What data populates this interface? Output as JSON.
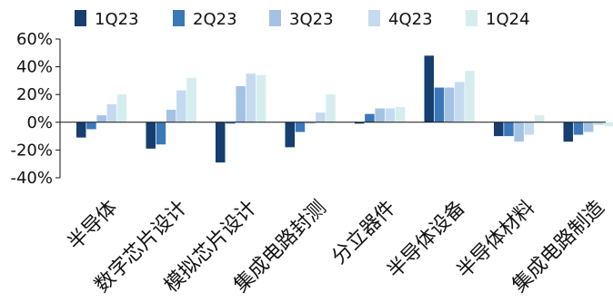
{
  "chart_data": {
    "type": "bar",
    "categories": [
      "半导体",
      "数字芯片设计",
      "模拟芯片设计",
      "集成电路封测",
      "分立器件",
      "半导体设备",
      "半导体材料",
      "集成电路制造"
    ],
    "series": [
      {
        "name": "1Q23",
        "color": "#163E6E",
        "values": [
          -11,
          -19,
          -29,
          -18,
          -1,
          48,
          -10,
          -14
        ]
      },
      {
        "name": "2Q23",
        "color": "#3A78B8",
        "values": [
          -5,
          -16,
          -1,
          -7,
          6,
          25,
          -10,
          -9
        ]
      },
      {
        "name": "3Q23",
        "color": "#A4C2E4",
        "values": [
          5,
          9,
          26,
          -1,
          10,
          25,
          -14,
          -7
        ]
      },
      {
        "name": "4Q23",
        "color": "#C4DAF0",
        "values": [
          13,
          23,
          35,
          7,
          10,
          29,
          -9,
          -2
        ]
      },
      {
        "name": "1Q24",
        "color": "#D6EDEE",
        "values": [
          20,
          32,
          34,
          20,
          11,
          37,
          5,
          -3
        ]
      }
    ],
    "yticks": [
      "60%",
      "40%",
      "20%",
      "0%",
      "-20%",
      "-40%"
    ],
    "ylim": [
      -40,
      60
    ],
    "legend_position": "top",
    "grid": false
  }
}
